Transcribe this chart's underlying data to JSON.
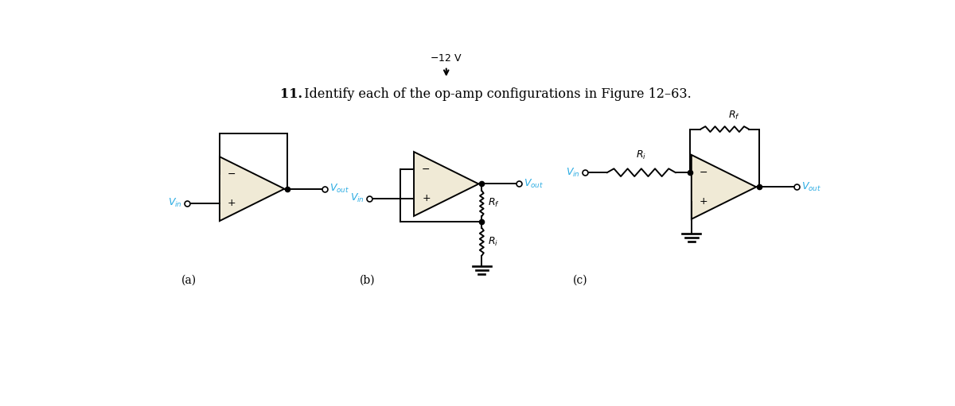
{
  "title_bold": "11.",
  "title_rest": "  Identify each of the op-amp configurations in Figure 12–63.",
  "title_fontsize": 11.5,
  "bg_color": "#ffffff",
  "op_amp_fill": "#f0ead6",
  "wire_color": "#000000",
  "label_color": "#29ABE2",
  "text_color": "#000000",
  "label_a": "(a)",
  "label_b": "(b)",
  "label_c": "(c)",
  "lw": 1.4
}
